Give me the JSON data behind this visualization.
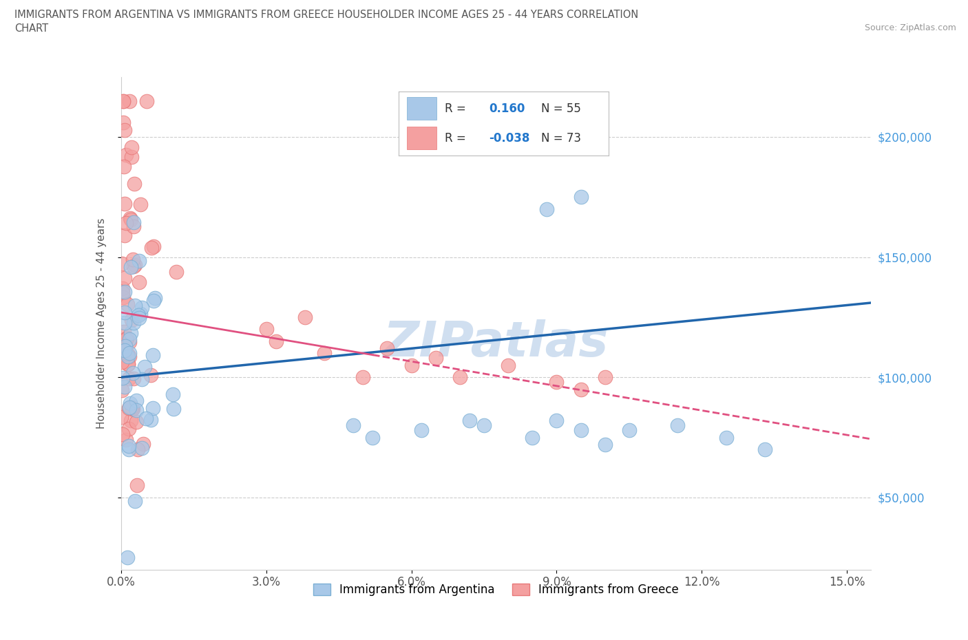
{
  "title_line1": "IMMIGRANTS FROM ARGENTINA VS IMMIGRANTS FROM GREECE HOUSEHOLDER INCOME AGES 25 - 44 YEARS CORRELATION",
  "title_line2": "CHART",
  "source": "Source: ZipAtlas.com",
  "ylabel": "Householder Income Ages 25 - 44 years",
  "xlim": [
    0.0,
    0.155
  ],
  "ylim": [
    20000,
    225000
  ],
  "yticks": [
    50000,
    100000,
    150000,
    200000
  ],
  "ytick_labels": [
    "$50,000",
    "$100,000",
    "$150,000",
    "$200,000"
  ],
  "xticks": [
    0.0,
    0.03,
    0.06,
    0.09,
    0.12,
    0.15
  ],
  "xtick_labels": [
    "0.0%",
    "3.0%",
    "6.0%",
    "9.0%",
    "12.0%",
    "15.0%"
  ],
  "legend_val1": "0.160",
  "legend_N1": "N = 55",
  "legend_val2": "-0.038",
  "legend_N2": "N = 73",
  "color_argentina": "#a8c8e8",
  "color_argentina_edge": "#7bafd4",
  "color_greece": "#f4a0a0",
  "color_greece_edge": "#e87878",
  "color_argentina_line": "#2166ac",
  "color_greece_line": "#e05080",
  "watermark": "ZIPatlas",
  "watermark_color": "#d0dff0",
  "legend_label1": "Immigrants from Argentina",
  "legend_label2": "Immigrants from Greece"
}
